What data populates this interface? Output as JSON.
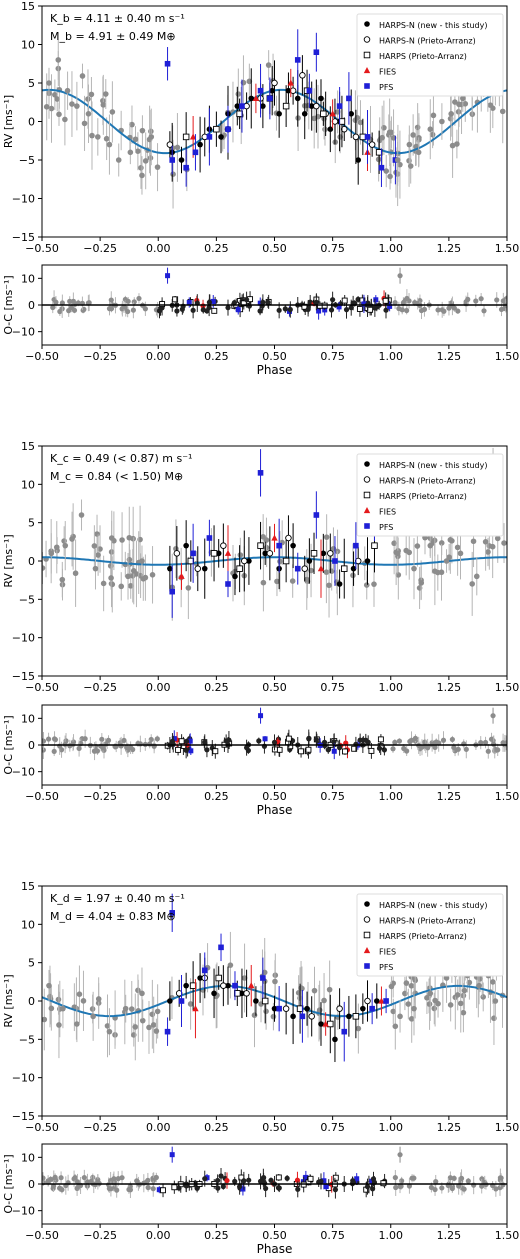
{
  "chart_data": [
    {
      "type": "scatter",
      "title": "",
      "xlabel": "",
      "ylabel": "RV [ms⁻¹]",
      "xlim": [
        -0.5,
        1.5
      ],
      "ylim": [
        -15,
        15
      ],
      "xticks": [
        -0.5,
        -0.25,
        0.0,
        0.25,
        0.5,
        0.75,
        1.0,
        1.25,
        1.5
      ],
      "yticks": [
        -15,
        -10,
        -5,
        0,
        5,
        10,
        15
      ],
      "annotation_lines": [
        "K_b = 4.11 ± 0.40 m s⁻¹",
        "M_b = 4.91 ± 0.49 M⊕"
      ],
      "legend_position": "top-right",
      "legend": [
        "HARPS-N (new - this study)",
        "HARPS-N (Prieto-Arranz)",
        "HARPS (Prieto-Arranz)",
        "FIES",
        "PFS"
      ],
      "model": {
        "name": "",
        "amplitude": 4.11,
        "peak_phase": 0.53
      },
      "series": [
        {
          "name": "HARPS-N (new - this study)",
          "x": [
            0.06,
            0.1,
            0.18,
            0.22,
            0.27,
            0.3,
            0.34,
            0.4,
            0.45,
            0.49,
            0.52,
            0.56,
            0.6,
            0.63,
            0.66,
            0.7,
            0.74,
            0.78,
            0.83,
            0.86,
            0.9
          ],
          "y": [
            -4,
            -5,
            -3,
            -1,
            -2,
            1,
            2,
            3,
            2,
            4,
            1,
            4,
            3,
            1,
            2,
            3,
            -1,
            0,
            1,
            -5,
            -2
          ]
        },
        {
          "name": "HARPS-N (Prieto-Arranz)",
          "x": [
            0.05,
            0.2,
            0.3,
            0.38,
            0.44,
            0.5,
            0.58,
            0.62,
            0.68,
            0.72,
            0.76,
            0.8,
            0.85,
            0.92
          ],
          "y": [
            -3,
            -2,
            -1,
            2,
            3,
            5,
            4,
            6,
            2,
            1,
            0,
            -1,
            -2,
            -3
          ]
        },
        {
          "name": "HARPS (Prieto-Arranz)",
          "x": [
            0.12,
            0.25,
            0.35,
            0.48,
            0.55,
            0.64,
            0.71,
            0.79,
            0.88,
            0.95
          ],
          "y": [
            -2,
            -1,
            1,
            3,
            2,
            4,
            1,
            0,
            -2,
            -4
          ]
        },
        {
          "name": "FIES",
          "x": [
            0.15,
            0.42,
            0.57,
            0.75,
            0.9
          ],
          "y": [
            -2,
            3,
            5,
            1,
            -4
          ]
        },
        {
          "name": "PFS",
          "x": [
            0.04,
            0.06,
            0.12,
            0.16,
            0.22,
            0.3,
            0.36,
            0.44,
            0.48,
            0.6,
            0.65,
            0.68,
            0.78,
            0.82,
            0.9,
            0.96,
            1.02
          ],
          "y": [
            7.5,
            -5,
            -6,
            -4,
            -2,
            -1,
            2,
            4,
            3,
            8,
            4,
            9,
            2,
            3,
            -2,
            -6,
            -5
          ]
        },
        {
          "name": "",
          "x": [
            -0.47,
            -0.43,
            -0.39,
            -0.35,
            -0.3,
            -0.26,
            -0.21,
            -0.17,
            -0.12,
            -0.07,
            -0.03,
            1.03,
            1.08,
            1.12,
            1.17,
            1.22,
            1.26,
            1.31,
            1.35,
            1.4,
            1.45
          ],
          "y": [
            5,
            8,
            4,
            2,
            1,
            -2,
            -3,
            -5,
            -4,
            -7,
            -2,
            -5,
            -3,
            -4,
            -1,
            0,
            1,
            3,
            4,
            6,
            5
          ]
        }
      ]
    },
    {
      "type": "scatter",
      "title": "",
      "xlabel": "Phase",
      "ylabel": "O-C [ms⁻¹]",
      "xlim": [
        -0.5,
        1.5
      ],
      "ylim": [
        -15,
        15
      ],
      "xticks": [
        -0.5,
        -0.25,
        0.0,
        0.25,
        0.5,
        0.75,
        1.0,
        1.25,
        1.5
      ],
      "yticks": [
        -10,
        0,
        10
      ],
      "residual_series": {
        "name": "",
        "x": [
          0.04,
          0.08,
          0.15,
          0.22,
          0.3,
          0.38,
          0.45,
          0.52,
          0.6,
          0.68,
          0.75,
          0.83,
          0.9,
          1.04
        ],
        "y": [
          11,
          0,
          -2,
          1,
          -1,
          2,
          1,
          -2,
          0,
          1,
          2,
          -1,
          0,
          11
        ]
      }
    },
    {
      "type": "scatter",
      "title": "",
      "xlabel": "",
      "ylabel": "RV [ms⁻¹]",
      "xlim": [
        -0.5,
        1.5
      ],
      "ylim": [
        -15,
        15
      ],
      "xticks": [
        -0.5,
        -0.25,
        0.0,
        0.25,
        0.5,
        0.75,
        1.0,
        1.25,
        1.5
      ],
      "yticks": [
        -15,
        -10,
        -5,
        0,
        5,
        10,
        15
      ],
      "annotation_lines": [
        "K_c = 0.49 (< 0.87) m s⁻¹",
        "M_c = 0.84 (< 1.50) M⊕"
      ],
      "legend_position": "top-right",
      "legend": [
        "HARPS-N (new - this study)",
        "HARPS-N (Prieto-Arranz)",
        "HARPS (Prieto-Arranz)",
        "FIES",
        "PFS"
      ],
      "model": {
        "name": "",
        "amplitude": 0.49,
        "peak_phase": 0.5
      },
      "series": [
        {
          "name": "HARPS-N (new - this study)",
          "x": [
            0.05,
            0.12,
            0.2,
            0.26,
            0.33,
            0.39,
            0.46,
            0.52,
            0.58,
            0.65,
            0.71,
            0.78,
            0.84,
            0.9
          ],
          "y": [
            -1,
            2,
            -1,
            1,
            -2,
            0,
            1,
            -1,
            2,
            0,
            1,
            -3,
            -1,
            0
          ]
        },
        {
          "name": "HARPS-N (Prieto-Arranz)",
          "x": [
            0.08,
            0.17,
            0.28,
            0.37,
            0.48,
            0.56,
            0.63,
            0.74,
            0.86
          ],
          "y": [
            1,
            -1,
            2,
            0,
            1,
            3,
            -1,
            1,
            0
          ]
        },
        {
          "name": "HARPS (Prieto-Arranz)",
          "x": [
            0.14,
            0.24,
            0.35,
            0.44,
            0.55,
            0.67,
            0.8,
            0.93
          ],
          "y": [
            0,
            1,
            -1,
            2,
            0,
            1,
            -1,
            2
          ]
        },
        {
          "name": "FIES",
          "x": [
            0.1,
            0.3,
            0.5,
            0.7
          ],
          "y": [
            -2,
            1,
            3,
            -1
          ]
        },
        {
          "name": "PFS",
          "x": [
            0.06,
            0.15,
            0.22,
            0.3,
            0.44,
            0.52,
            0.6,
            0.68,
            0.76,
            0.85,
            0.93
          ],
          "y": [
            -4,
            1,
            3,
            -3,
            11.5,
            2,
            -1,
            6,
            0,
            2,
            5
          ]
        },
        {
          "name": "",
          "x": [
            -0.46,
            -0.4,
            -0.33,
            -0.27,
            -0.2,
            -0.13,
            -0.07,
            1.03,
            1.1,
            1.17,
            1.24,
            1.3,
            1.37,
            1.44
          ],
          "y": [
            1,
            2,
            6,
            -1,
            3,
            -2,
            0,
            1,
            -1,
            2,
            0,
            1,
            -2,
            11
          ]
        }
      ]
    },
    {
      "type": "scatter",
      "title": "",
      "xlabel": "Phase",
      "ylabel": "O-C [ms⁻¹]",
      "xlim": [
        -0.5,
        1.5
      ],
      "ylim": [
        -15,
        15
      ],
      "xticks": [
        -0.5,
        -0.25,
        0.0,
        0.25,
        0.5,
        0.75,
        1.0,
        1.25,
        1.5
      ],
      "yticks": [
        -10,
        0,
        10
      ],
      "residual_series": {
        "name": "",
        "x": [
          0.05,
          0.12,
          0.2,
          0.3,
          0.38,
          0.44,
          0.5,
          0.6,
          0.68,
          0.78,
          0.88,
          1.44
        ],
        "y": [
          0,
          -2,
          1,
          0,
          -1,
          11,
          1,
          0,
          2,
          -1,
          0,
          11
        ]
      }
    },
    {
      "type": "scatter",
      "title": "",
      "xlabel": "",
      "ylabel": "RV [ms⁻¹]",
      "xlim": [
        -0.5,
        1.5
      ],
      "ylim": [
        -15,
        15
      ],
      "xticks": [
        -0.5,
        -0.25,
        0.0,
        0.25,
        0.5,
        0.75,
        1.0,
        1.25,
        1.5
      ],
      "yticks": [
        -15,
        -10,
        -5,
        0,
        5,
        10,
        15
      ],
      "annotation_lines": [
        "K_d = 1.97 ± 0.40 m s⁻¹",
        "M_d = 4.04 ± 0.83 M⊕"
      ],
      "legend_position": "top-right",
      "legend": [
        "HARPS-N (new - this study)",
        "HARPS-N (Prieto-Arranz)",
        "HARPS (Prieto-Arranz)",
        "FIES",
        "PFS"
      ],
      "model": {
        "name": "",
        "amplitude": 1.97,
        "peak_phase": 0.29
      },
      "series": [
        {
          "name": "HARPS-N (new - this study)",
          "x": [
            0.05,
            0.12,
            0.18,
            0.24,
            0.3,
            0.36,
            0.42,
            0.5,
            0.58,
            0.64,
            0.7,
            0.76,
            0.82,
            0.88,
            0.94
          ],
          "y": [
            0,
            2,
            3,
            1,
            2,
            1,
            0,
            -1,
            -2,
            -1,
            -3,
            -5,
            -2,
            -1,
            0
          ]
        },
        {
          "name": "HARPS-N (Prieto-Arranz)",
          "x": [
            0.09,
            0.2,
            0.28,
            0.38,
            0.55,
            0.66,
            0.78,
            0.9
          ],
          "y": [
            1,
            3,
            2,
            1,
            -1,
            -2,
            -1,
            0
          ]
        },
        {
          "name": "HARPS (Prieto-Arranz)",
          "x": [
            0.15,
            0.26,
            0.34,
            0.46,
            0.61,
            0.74,
            0.85
          ],
          "y": [
            2,
            3,
            1,
            0,
            -1,
            -3,
            -2
          ]
        },
        {
          "name": "FIES",
          "x": [
            0.16,
            0.4,
            0.72,
            0.96
          ],
          "y": [
            -1,
            2,
            -3,
            0
          ]
        },
        {
          "name": "PFS",
          "x": [
            0.04,
            0.06,
            0.1,
            0.2,
            0.27,
            0.33,
            0.45,
            0.52,
            0.62,
            0.8,
            0.92,
            0.98
          ],
          "y": [
            -4,
            11.5,
            0,
            4,
            7,
            2,
            3,
            -1,
            -2,
            -4,
            -1,
            0
          ]
        },
        {
          "name": "",
          "x": [
            -0.47,
            -0.41,
            -0.35,
            -0.28,
            -0.21,
            -0.14,
            -0.07,
            1.04,
            1.1,
            1.17,
            1.24,
            1.31,
            1.38,
            1.45
          ],
          "y": [
            2,
            -1,
            -3,
            -2,
            -4,
            -1,
            1,
            -2,
            -1,
            1,
            3,
            5,
            2,
            0
          ]
        }
      ]
    },
    {
      "type": "scatter",
      "title": "",
      "xlabel": "Phase",
      "ylabel": "O-C [ms⁻¹]",
      "xlim": [
        -0.5,
        1.5
      ],
      "ylim": [
        -15,
        15
      ],
      "xticks": [
        -0.5,
        -0.25,
        0.0,
        0.25,
        0.5,
        0.75,
        1.0,
        1.25,
        1.5
      ],
      "yticks": [
        -10,
        0,
        10
      ],
      "residual_series": {
        "name": "",
        "x": [
          0.06,
          0.12,
          0.2,
          0.27,
          0.35,
          0.44,
          0.5,
          0.6,
          0.7,
          0.8,
          0.9,
          1.04
        ],
        "y": [
          11,
          0,
          2,
          3,
          -1,
          1,
          0,
          -2,
          1,
          0,
          -1,
          11
        ]
      }
    }
  ],
  "style": {
    "harps_n_new": "#000000",
    "harps_n_pa": "#000000",
    "harps_pa": "#000000",
    "fies": "#e41a1c",
    "pfs": "#1f1fd6",
    "bg_points": "#8c8c8c",
    "model": "#1f77b4",
    "axis": "#000000"
  }
}
